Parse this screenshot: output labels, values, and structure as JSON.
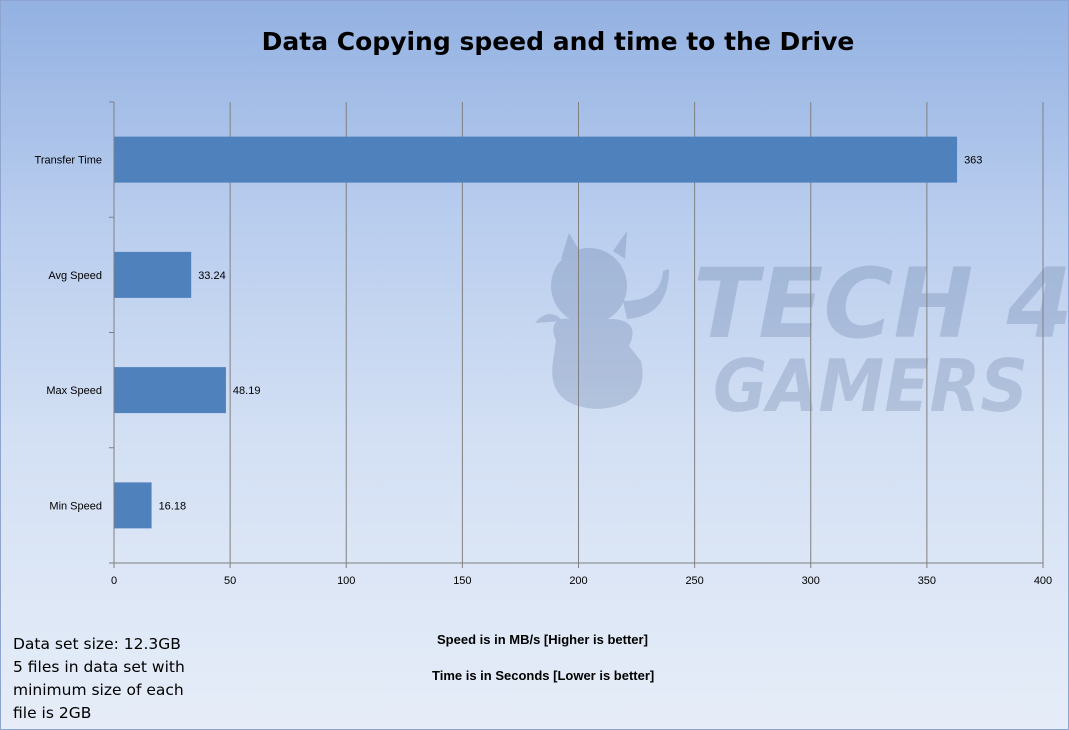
{
  "chart_data": {
    "type": "bar",
    "orientation": "horizontal",
    "title": "Data Copying speed and time to the Drive",
    "categories": [
      "Transfer Time",
      "Avg Speed",
      "Max Speed",
      "Min Speed"
    ],
    "series": [
      {
        "values": [
          363,
          33.24,
          48.19,
          16.18
        ],
        "labels": [
          "363",
          "33.24",
          "48.19",
          "16.18"
        ],
        "color": "#4f81bd"
      }
    ],
    "xlim": [
      0,
      400
    ],
    "xticks": [
      0,
      50,
      100,
      150,
      200,
      250,
      300,
      350,
      400
    ],
    "grid": true
  },
  "notes": {
    "speed": "Speed is in MB/s [Higher is better]",
    "time": "Time is in Seconds [Lower  is better]",
    "dataset": [
      "Data set size: 12.3GB",
      "5 files in data set with",
      "minimum size of each",
      "file is 2GB"
    ]
  },
  "colors": {
    "background_top": "#93b1e2",
    "background_bottom": "#e6edf8",
    "bar": "#4f81bd",
    "gridline": "#808080"
  }
}
